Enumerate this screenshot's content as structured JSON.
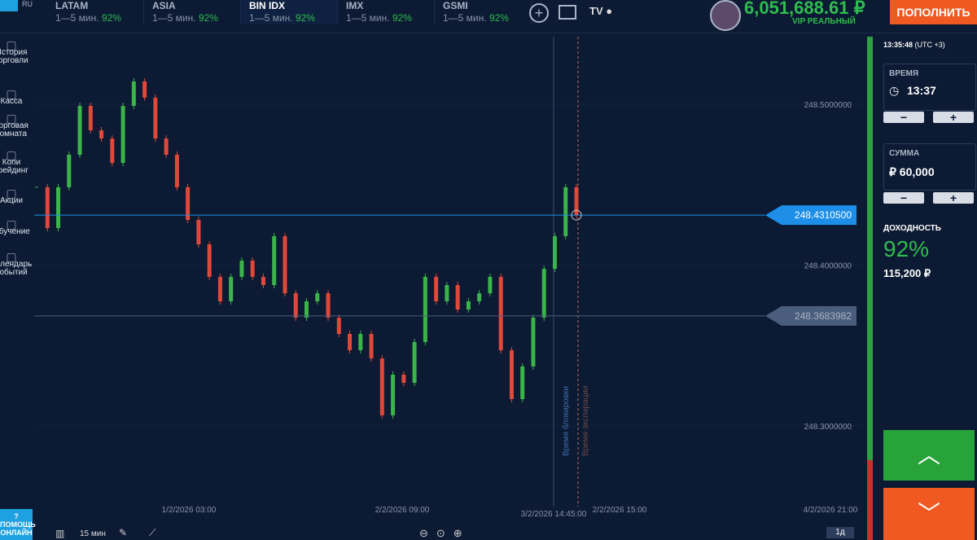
{
  "header": {
    "lang": "RU",
    "assets": [
      {
        "name": "LATAM",
        "period": "1—5 мин.",
        "payout": "92%"
      },
      {
        "name": "ASIA",
        "period": "1—5 мин.",
        "payout": "92%"
      },
      {
        "name": "BIN IDX",
        "period": "1—5 мин.",
        "payout": "92%"
      },
      {
        "name": "IMX",
        "period": "1—5 мин.",
        "payout": "92%"
      },
      {
        "name": "GSMI",
        "period": "1—5 мин.",
        "payout": "92%"
      }
    ],
    "balance": "6,051,688.61 ₽",
    "account": "VIP РЕАЛЬНЫЙ",
    "deposit_button": "ПОПОЛНИТЬ"
  },
  "sidebar": [
    "История торговли",
    "Касса",
    "Торговая комната",
    "Копи трейдинг",
    "Акции",
    "Обучение",
    "Календарь событий"
  ],
  "chart_data": {
    "type": "candlestick",
    "closes": [
      248.4484,
      248.423,
      248.4484,
      248.4686,
      248.499,
      248.4838,
      248.4787,
      248.4635,
      248.499,
      248.5142,
      248.5041,
      248.4787,
      248.4686,
      248.4484,
      248.4281,
      248.4129,
      248.3927,
      248.3775,
      248.3927,
      248.4028,
      248.3927,
      248.3876,
      248.418,
      248.3825,
      248.3673,
      248.3775,
      248.3825,
      248.3673,
      248.3572,
      248.3471,
      248.3572,
      248.342,
      248.3066,
      248.3319,
      248.3268,
      248.3522,
      248.3927,
      248.3775,
      248.3876,
      248.3724,
      248.3775,
      248.3825,
      248.3927,
      248.3471,
      248.3167,
      248.337,
      248.3673,
      248.3977,
      248.418,
      248.4484,
      248.431
    ],
    "ylim": [
      248.25,
      248.55
    ],
    "yticks": [
      {
        "value": 248.5,
        "label": "248.5000000"
      },
      {
        "value": 248.4,
        "label": "248.4000000"
      },
      {
        "value": 248.3,
        "label": "248.3000000"
      }
    ],
    "x_labels": [
      "1/2/2026 03:00",
      "2/2/2026 09:00",
      "2/2/2026 15:00",
      "4/2/2026 21:00"
    ],
    "price_lines": [
      {
        "value": 248.43105,
        "label": "248.4310500"
      },
      {
        "value": 248.3683982,
        "label": "248.3683982"
      }
    ],
    "lock_line": {
      "label": "Время блокировки",
      "time": "3/2/2026 14:45:00"
    },
    "expiry_line": {
      "label": "Время экспирации"
    },
    "colors": {
      "up": "#3bb44a",
      "down": "#e0483a"
    }
  },
  "toolbar": {
    "interval": "15 мин",
    "range": "1д"
  },
  "help": "ПОМОЩЬ ОНЛАЙН",
  "trade_panel": {
    "clock": "13:35:48",
    "timezone": "(UTC +3)",
    "time_label": "ВРЕМЯ",
    "time": "13:37",
    "amount_label": "СУММА",
    "amount": "₽ 60,000",
    "yield_label": "ДОХОДНОСТЬ",
    "yield": "92%",
    "payout": "115,200 ₽"
  }
}
